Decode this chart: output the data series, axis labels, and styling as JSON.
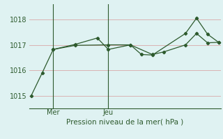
{
  "background_color": "#dff2f2",
  "grid_color": "#d8a8a8",
  "line_color": "#2d5a2d",
  "marker_color": "#2d5a2d",
  "ylim": [
    1014.5,
    1018.6
  ],
  "yticks": [
    1015,
    1016,
    1017,
    1018
  ],
  "xlabel": "Pression niveau de la mer( hPa )",
  "xtick_labels": [
    "Mer",
    "Jeu"
  ],
  "xtick_positions": [
    2,
    7
  ],
  "total_points": 18,
  "series1_x": [
    0,
    1,
    2,
    4,
    7,
    9,
    11,
    12,
    14,
    15,
    16,
    17
  ],
  "series1_y": [
    1015.0,
    1015.9,
    1016.82,
    1016.98,
    1017.0,
    1017.0,
    1016.62,
    1016.72,
    1017.0,
    1017.45,
    1017.08,
    1017.1
  ],
  "series2_x": [
    2,
    4,
    6,
    7,
    9,
    10,
    11,
    14,
    15,
    16,
    17
  ],
  "series2_y": [
    1016.82,
    1017.02,
    1017.27,
    1016.82,
    1017.0,
    1016.62,
    1016.6,
    1017.45,
    1018.05,
    1017.42,
    1017.1
  ],
  "ver_line_x": [
    2,
    7
  ],
  "axis_fontsize": 7.5,
  "tick_fontsize": 7
}
